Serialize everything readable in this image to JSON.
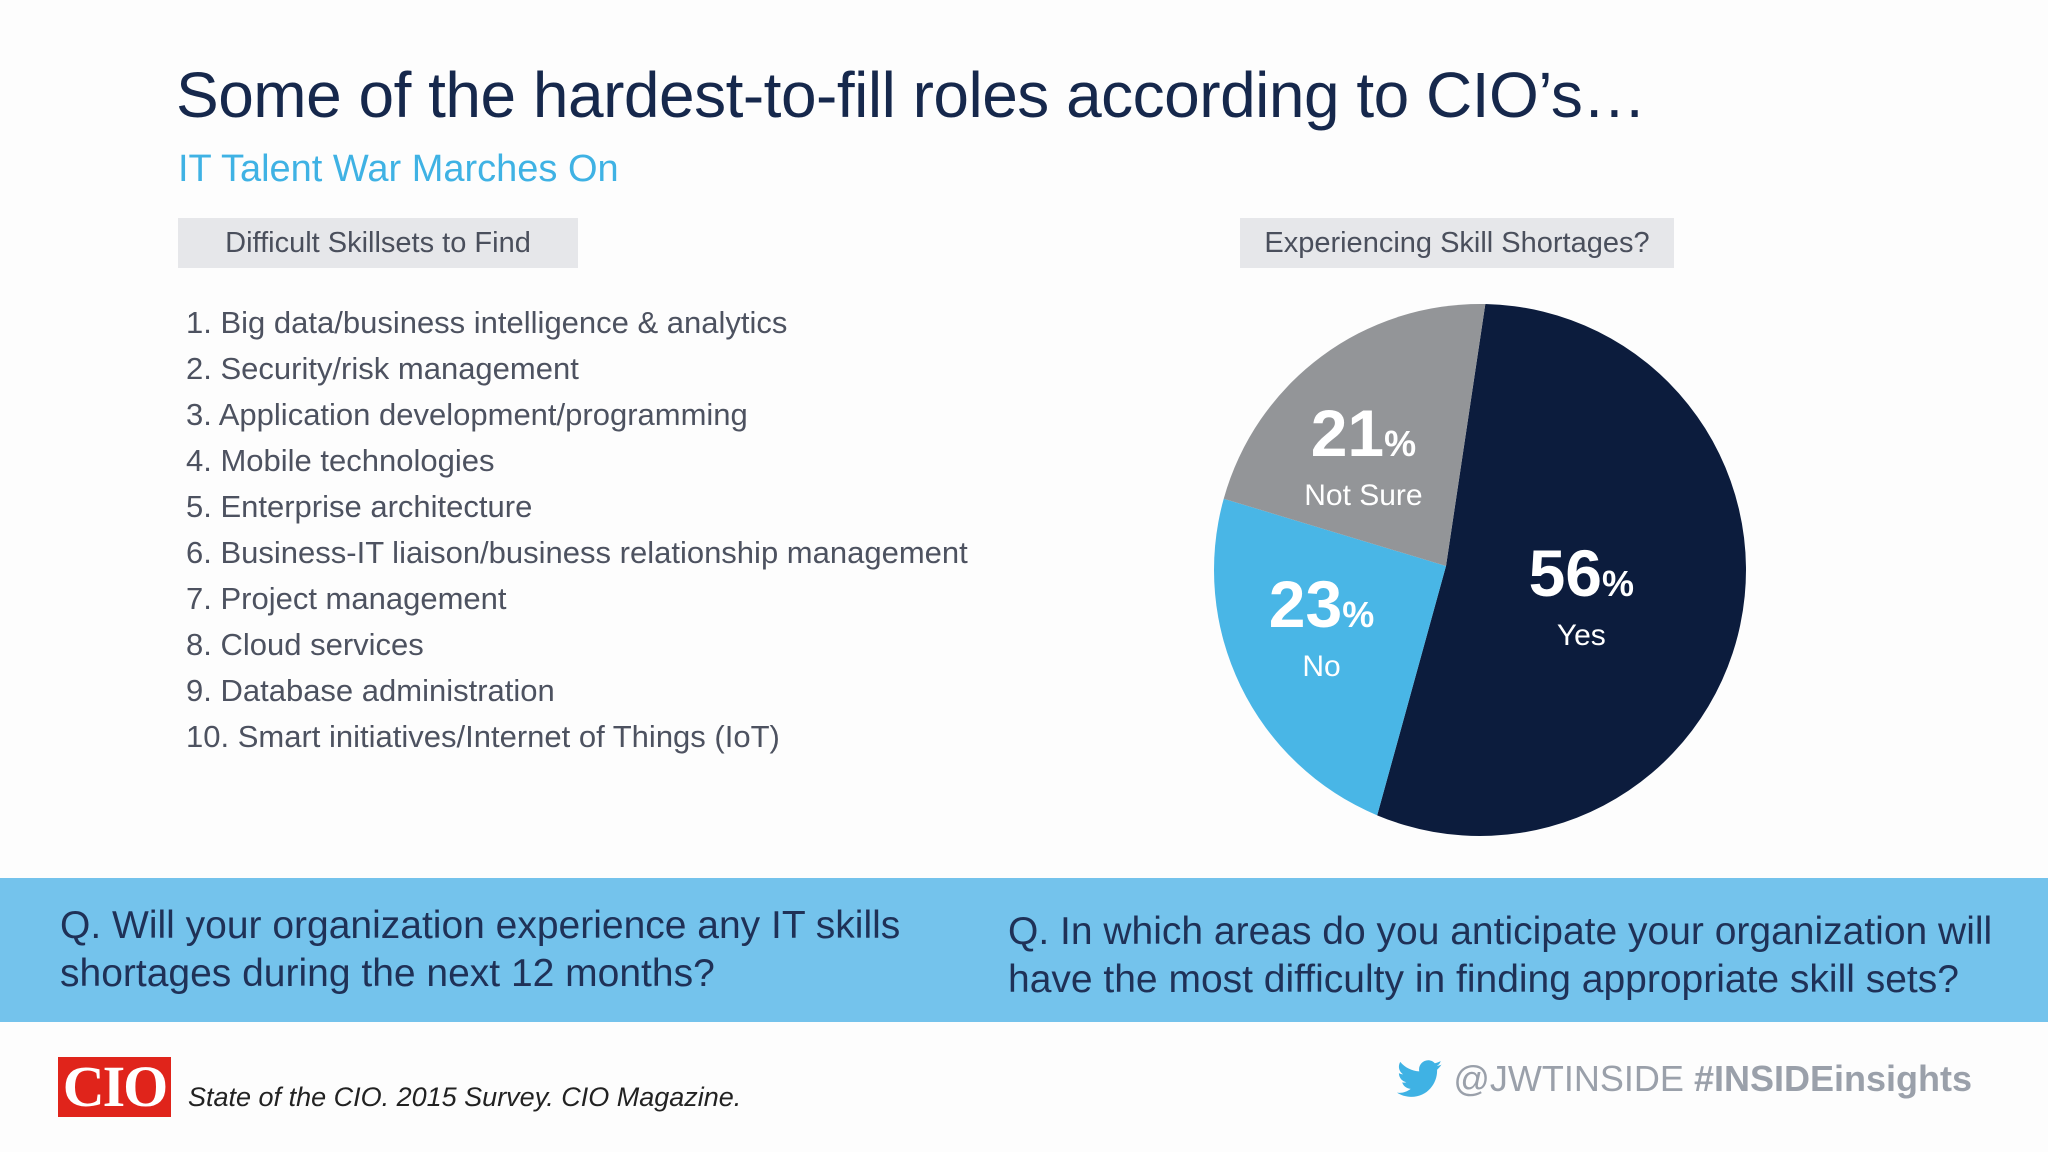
{
  "header": {
    "title": "Some of the hardest-to-fill roles according to CIO’s…",
    "subtitle": "IT Talent War Marches On"
  },
  "left_panel": {
    "heading": "Difficult Skillsets to Find",
    "skills": [
      "1. Big data/business intelligence & analytics",
      "2. Security/risk management",
      "3. Application development/programming",
      "4. Mobile technologies",
      "5. Enterprise architecture",
      "6. Business-IT liaison/business relationship management",
      "7. Project management",
      "8. Cloud services",
      "9. Database administration",
      "10. Smart initiatives/Internet of Things (IoT)"
    ]
  },
  "right_panel": {
    "heading": "Experiencing Skill Shortages?"
  },
  "chart_data": {
    "type": "pie",
    "title": "Experiencing Skill Shortages?",
    "unit": "%",
    "slices": [
      {
        "label": "Yes",
        "value": 56,
        "color": "#0c1c3d"
      },
      {
        "label": "No",
        "value": 23,
        "color": "#49b6e6"
      },
      {
        "label": "Not Sure",
        "value": 21,
        "color": "#939598"
      }
    ]
  },
  "banner": {
    "question_left": "Q. Will your organization experience any IT skills shortages during the next 12 months?",
    "question_right": "Q. In which areas do you anticipate your organization will have the most difficulty in finding appropriate skill sets?"
  },
  "footer": {
    "logo_text": "CIO",
    "source": "State of the CIO. 2015 Survey. CIO Magazine.",
    "twitter_icon": "twitter-bird-icon",
    "handle": "@JWTINSIDE",
    "hashtag": "#INSIDEinsights"
  }
}
